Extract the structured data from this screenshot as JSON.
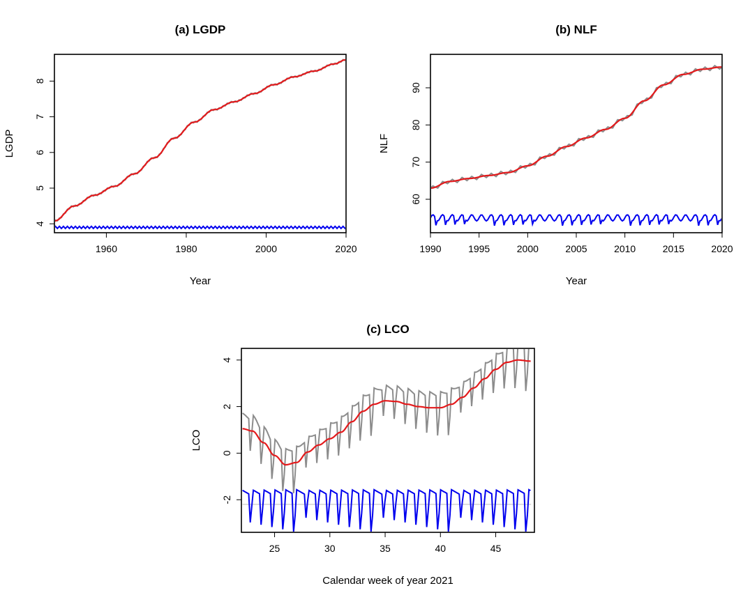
{
  "chart_data": [
    {
      "type": "line",
      "title": "(a) LGDP",
      "xlabel": "Year",
      "ylabel": "LGDP",
      "xlim": [
        1947,
        2020
      ],
      "ylim": [
        3.75,
        8.75
      ],
      "xticks": [
        1960,
        1980,
        2000,
        2020
      ],
      "yticks": [
        4,
        5,
        6,
        7,
        8
      ],
      "grid": false,
      "series": [
        {
          "role": "observed",
          "color": "#8c8c8c",
          "x": [
            1947,
            1952,
            1957,
            1962,
            1967,
            1972,
            1977,
            1982,
            1987,
            1992,
            1997,
            2002,
            2007,
            2012,
            2017,
            2020
          ],
          "y": [
            4.08,
            4.5,
            4.8,
            5.05,
            5.4,
            5.85,
            6.4,
            6.85,
            7.2,
            7.42,
            7.65,
            7.9,
            8.12,
            8.28,
            8.48,
            8.6
          ]
        },
        {
          "role": "trend",
          "color": "#e31a1c",
          "x": [
            1947,
            1952,
            1957,
            1962,
            1967,
            1972,
            1977,
            1982,
            1987,
            1992,
            1997,
            2002,
            2007,
            2012,
            2017,
            2020
          ],
          "y": [
            4.08,
            4.5,
            4.8,
            5.05,
            5.4,
            5.85,
            6.4,
            6.85,
            7.2,
            7.42,
            7.65,
            7.9,
            8.12,
            8.28,
            8.48,
            8.6
          ]
        },
        {
          "role": "seasonal",
          "color": "#0000ee",
          "level": 3.9,
          "amplitude": 0.03,
          "period": 1
        }
      ]
    },
    {
      "type": "line",
      "title": "(b) NLF",
      "xlabel": "Year",
      "ylabel": "NLF",
      "xlim": [
        1990,
        2020
      ],
      "ylim": [
        51,
        99
      ],
      "xticks": [
        1990,
        1995,
        2000,
        2005,
        2010,
        2015,
        2020
      ],
      "yticks": [
        60,
        70,
        80,
        90
      ],
      "grid": false,
      "series": [
        {
          "role": "observed",
          "color": "#8c8c8c",
          "x": [
            1990,
            1992,
            1994,
            1996,
            1998,
            2000,
            2002,
            2004,
            2006,
            2008,
            2010,
            2012,
            2014,
            2016,
            2018,
            2020
          ],
          "y": [
            63,
            64.8,
            65.6,
            66.4,
            67.2,
            69,
            71.6,
            74.2,
            76.5,
            78.8,
            81.8,
            86.5,
            90.8,
            93.6,
            95,
            95.6
          ]
        },
        {
          "role": "trend",
          "color": "#e31a1c",
          "x": [
            1990,
            1992,
            1994,
            1996,
            1998,
            2000,
            2002,
            2004,
            2006,
            2008,
            2010,
            2012,
            2014,
            2016,
            2018,
            2020
          ],
          "y": [
            63,
            64.8,
            65.6,
            66.4,
            67.2,
            69,
            71.6,
            74.2,
            76.5,
            78.8,
            81.8,
            86.5,
            90.8,
            93.6,
            95,
            95.6
          ]
        },
        {
          "role": "seasonal",
          "color": "#0000ee",
          "level": 55,
          "amplitude": 1.4,
          "period": 1
        }
      ]
    },
    {
      "type": "line",
      "title": "(c) LCO",
      "xlabel": "Calendar week of year 2021",
      "ylabel": "LCO",
      "xlim": [
        22,
        48.5
      ],
      "ylim": [
        -3.4,
        4.5
      ],
      "xticks": [
        25,
        30,
        35,
        40,
        45
      ],
      "yticks": [
        -2,
        0,
        2,
        4
      ],
      "grid": false,
      "series": [
        {
          "role": "observed",
          "color": "#8c8c8c",
          "x": [
            22.1,
            23,
            24,
            25,
            26,
            27,
            28,
            29,
            30,
            31,
            32,
            33,
            34,
            35,
            36,
            37,
            38,
            39,
            40,
            41,
            42,
            43,
            44,
            45,
            46,
            47,
            48.2
          ],
          "y": [
            1.05,
            0.95,
            0.45,
            -0.1,
            -0.5,
            -0.4,
            0.05,
            0.35,
            0.62,
            0.9,
            1.35,
            1.8,
            2.1,
            2.25,
            2.22,
            2.1,
            2.0,
            1.95,
            1.95,
            2.1,
            2.4,
            2.8,
            3.2,
            3.6,
            3.9,
            4.0,
            3.95
          ]
        },
        {
          "role": "trend",
          "color": "#e31a1c",
          "x": [
            22.1,
            23,
            24,
            25,
            26,
            27,
            28,
            29,
            30,
            31,
            32,
            33,
            34,
            35,
            36,
            37,
            38,
            39,
            40,
            41,
            42,
            43,
            44,
            45,
            46,
            47,
            48.2
          ],
          "y": [
            1.05,
            0.95,
            0.45,
            -0.1,
            -0.5,
            -0.4,
            0.05,
            0.35,
            0.62,
            0.9,
            1.35,
            1.8,
            2.1,
            2.25,
            2.22,
            2.1,
            2.0,
            1.95,
            1.95,
            2.1,
            2.4,
            2.8,
            3.2,
            3.6,
            3.9,
            4.0,
            3.95
          ]
        },
        {
          "role": "seasonal",
          "color": "#0000ee",
          "level": -2.2,
          "amplitude": 1.0,
          "period": 1
        }
      ]
    }
  ]
}
